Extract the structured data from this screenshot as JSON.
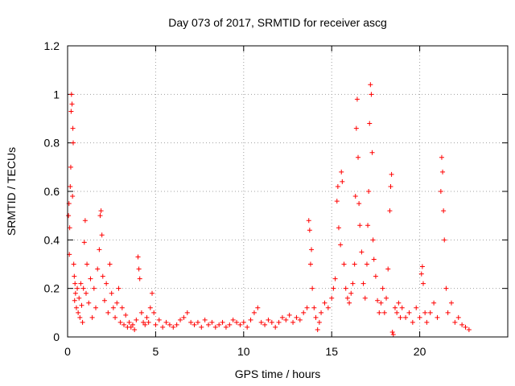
{
  "chart_data": {
    "type": "scatter",
    "title": "Day 073 of 2017, SRMTID for receiver ascg",
    "xlabel": "GPS time / hours",
    "ylabel": "SRMTID / TECUs",
    "xlim": [
      0,
      25
    ],
    "ylim": [
      0,
      1.2
    ],
    "xticks": [
      0,
      5,
      10,
      15,
      20
    ],
    "xtick_labels": [
      "0",
      "5",
      "10",
      "15",
      "20"
    ],
    "yticks": [
      0,
      0.2,
      0.4,
      0.6,
      0.8,
      1.0,
      1.2
    ],
    "ytick_labels": [
      "0",
      "0.2",
      "0.4",
      "0.6",
      "0.8",
      "1",
      "1.2"
    ],
    "grid": true,
    "marker": "+",
    "color": "#ff0000",
    "series": [
      {
        "name": "SRMTID",
        "points": [
          [
            0.05,
            0.5
          ],
          [
            0.08,
            0.55
          ],
          [
            0.1,
            0.34
          ],
          [
            0.12,
            0.45
          ],
          [
            0.15,
            0.62
          ],
          [
            0.18,
            0.7
          ],
          [
            0.2,
            0.93
          ],
          [
            0.22,
            1.0
          ],
          [
            0.25,
            0.96
          ],
          [
            0.28,
            0.58
          ],
          [
            0.3,
            0.86
          ],
          [
            0.32,
            0.8
          ],
          [
            0.35,
            0.3
          ],
          [
            0.38,
            0.25
          ],
          [
            0.4,
            0.15
          ],
          [
            0.42,
            0.22
          ],
          [
            0.45,
            0.18
          ],
          [
            0.5,
            0.12
          ],
          [
            0.55,
            0.2
          ],
          [
            0.6,
            0.1
          ],
          [
            0.65,
            0.16
          ],
          [
            0.7,
            0.08
          ],
          [
            0.75,
            0.22
          ],
          [
            0.8,
            0.13
          ],
          [
            0.85,
            0.06
          ],
          [
            0.9,
            0.2
          ],
          [
            0.95,
            0.39
          ],
          [
            1.0,
            0.48
          ],
          [
            1.05,
            0.18
          ],
          [
            1.1,
            0.3
          ],
          [
            1.2,
            0.14
          ],
          [
            1.3,
            0.24
          ],
          [
            1.4,
            0.08
          ],
          [
            1.5,
            0.2
          ],
          [
            1.6,
            0.12
          ],
          [
            1.7,
            0.28
          ],
          [
            1.8,
            0.36
          ],
          [
            1.85,
            0.5
          ],
          [
            1.9,
            0.52
          ],
          [
            1.95,
            0.42
          ],
          [
            2.0,
            0.25
          ],
          [
            2.1,
            0.15
          ],
          [
            2.2,
            0.22
          ],
          [
            2.3,
            0.1
          ],
          [
            2.4,
            0.3
          ],
          [
            2.5,
            0.18
          ],
          [
            2.6,
            0.12
          ],
          [
            2.7,
            0.08
          ],
          [
            2.8,
            0.14
          ],
          [
            2.9,
            0.2
          ],
          [
            3.0,
            0.06
          ],
          [
            3.1,
            0.12
          ],
          [
            3.2,
            0.05
          ],
          [
            3.3,
            0.09
          ],
          [
            3.4,
            0.04
          ],
          [
            3.5,
            0.06
          ],
          [
            3.6,
            0.04
          ],
          [
            3.7,
            0.05
          ],
          [
            3.8,
            0.03
          ],
          [
            3.9,
            0.07
          ],
          [
            4.0,
            0.33
          ],
          [
            4.05,
            0.28
          ],
          [
            4.1,
            0.24
          ],
          [
            4.2,
            0.1
          ],
          [
            4.3,
            0.06
          ],
          [
            4.4,
            0.05
          ],
          [
            4.5,
            0.08
          ],
          [
            4.6,
            0.06
          ],
          [
            4.7,
            0.12
          ],
          [
            4.8,
            0.18
          ],
          [
            4.9,
            0.1
          ],
          [
            5.0,
            0.05
          ],
          [
            5.2,
            0.07
          ],
          [
            5.4,
            0.04
          ],
          [
            5.6,
            0.06
          ],
          [
            5.8,
            0.05
          ],
          [
            6.0,
            0.04
          ],
          [
            6.2,
            0.05
          ],
          [
            6.4,
            0.07
          ],
          [
            6.6,
            0.08
          ],
          [
            6.8,
            0.1
          ],
          [
            7.0,
            0.06
          ],
          [
            7.2,
            0.05
          ],
          [
            7.4,
            0.06
          ],
          [
            7.6,
            0.04
          ],
          [
            7.8,
            0.07
          ],
          [
            8.0,
            0.05
          ],
          [
            8.2,
            0.06
          ],
          [
            8.4,
            0.04
          ],
          [
            8.6,
            0.05
          ],
          [
            8.8,
            0.06
          ],
          [
            9.0,
            0.04
          ],
          [
            9.2,
            0.05
          ],
          [
            9.4,
            0.07
          ],
          [
            9.6,
            0.06
          ],
          [
            9.8,
            0.05
          ],
          [
            10.0,
            0.06
          ],
          [
            10.2,
            0.04
          ],
          [
            10.4,
            0.07
          ],
          [
            10.6,
            0.1
          ],
          [
            10.8,
            0.12
          ],
          [
            11.0,
            0.06
          ],
          [
            11.2,
            0.05
          ],
          [
            11.4,
            0.07
          ],
          [
            11.6,
            0.06
          ],
          [
            11.8,
            0.04
          ],
          [
            12.0,
            0.06
          ],
          [
            12.2,
            0.08
          ],
          [
            12.4,
            0.07
          ],
          [
            12.6,
            0.09
          ],
          [
            12.8,
            0.06
          ],
          [
            13.0,
            0.08
          ],
          [
            13.2,
            0.07
          ],
          [
            13.4,
            0.1
          ],
          [
            13.6,
            0.12
          ],
          [
            13.7,
            0.48
          ],
          [
            13.75,
            0.44
          ],
          [
            13.8,
            0.3
          ],
          [
            13.85,
            0.36
          ],
          [
            13.9,
            0.2
          ],
          [
            14.0,
            0.12
          ],
          [
            14.1,
            0.08
          ],
          [
            14.2,
            0.03
          ],
          [
            14.3,
            0.06
          ],
          [
            14.4,
            0.1
          ],
          [
            14.6,
            0.14
          ],
          [
            14.8,
            0.12
          ],
          [
            15.0,
            0.16
          ],
          [
            15.1,
            0.2
          ],
          [
            15.2,
            0.24
          ],
          [
            15.3,
            0.56
          ],
          [
            15.35,
            0.62
          ],
          [
            15.4,
            0.45
          ],
          [
            15.5,
            0.38
          ],
          [
            15.55,
            0.68
          ],
          [
            15.6,
            0.64
          ],
          [
            15.7,
            0.3
          ],
          [
            15.8,
            0.2
          ],
          [
            15.9,
            0.16
          ],
          [
            16.0,
            0.14
          ],
          [
            16.1,
            0.18
          ],
          [
            16.2,
            0.22
          ],
          [
            16.3,
            0.3
          ],
          [
            16.35,
            0.58
          ],
          [
            16.4,
            0.86
          ],
          [
            16.45,
            0.98
          ],
          [
            16.5,
            0.74
          ],
          [
            16.55,
            0.55
          ],
          [
            16.6,
            0.46
          ],
          [
            16.7,
            0.35
          ],
          [
            16.8,
            0.22
          ],
          [
            16.9,
            0.16
          ],
          [
            17.0,
            0.3
          ],
          [
            17.05,
            0.46
          ],
          [
            17.1,
            0.6
          ],
          [
            17.15,
            0.88
          ],
          [
            17.2,
            1.04
          ],
          [
            17.25,
            1.0
          ],
          [
            17.3,
            0.76
          ],
          [
            17.35,
            0.4
          ],
          [
            17.4,
            0.32
          ],
          [
            17.5,
            0.25
          ],
          [
            17.6,
            0.15
          ],
          [
            17.7,
            0.1
          ],
          [
            17.8,
            0.14
          ],
          [
            17.9,
            0.2
          ],
          [
            18.0,
            0.1
          ],
          [
            18.1,
            0.16
          ],
          [
            18.2,
            0.28
          ],
          [
            18.3,
            0.52
          ],
          [
            18.35,
            0.62
          ],
          [
            18.4,
            0.67
          ],
          [
            18.45,
            0.02
          ],
          [
            18.5,
            0.01
          ],
          [
            18.6,
            0.12
          ],
          [
            18.7,
            0.1
          ],
          [
            18.8,
            0.14
          ],
          [
            18.9,
            0.08
          ],
          [
            19.0,
            0.12
          ],
          [
            19.2,
            0.08
          ],
          [
            19.4,
            0.1
          ],
          [
            19.6,
            0.06
          ],
          [
            19.8,
            0.12
          ],
          [
            20.0,
            0.08
          ],
          [
            20.1,
            0.26
          ],
          [
            20.15,
            0.29
          ],
          [
            20.2,
            0.22
          ],
          [
            20.3,
            0.1
          ],
          [
            20.4,
            0.06
          ],
          [
            20.6,
            0.1
          ],
          [
            20.8,
            0.14
          ],
          [
            21.0,
            0.08
          ],
          [
            21.2,
            0.6
          ],
          [
            21.25,
            0.74
          ],
          [
            21.3,
            0.68
          ],
          [
            21.35,
            0.52
          ],
          [
            21.4,
            0.4
          ],
          [
            21.5,
            0.2
          ],
          [
            21.6,
            0.1
          ],
          [
            21.8,
            0.14
          ],
          [
            22.0,
            0.06
          ],
          [
            22.2,
            0.08
          ],
          [
            22.4,
            0.05
          ],
          [
            22.6,
            0.04
          ],
          [
            22.8,
            0.03
          ]
        ]
      }
    ]
  }
}
